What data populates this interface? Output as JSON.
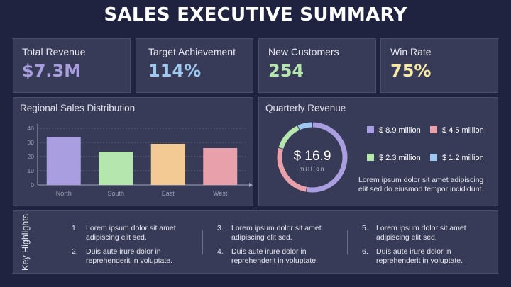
{
  "header": {
    "title": "SALES EXECUTIVE SUMMARY"
  },
  "kpis": [
    {
      "label": "Total Revenue",
      "value": "$7.3M",
      "color": "#a99ee0"
    },
    {
      "label": "Target Achievement",
      "value": "114%",
      "color": "#9ec8f0"
    },
    {
      "label": "New Customers",
      "value": "254",
      "color": "#b5e6ad"
    },
    {
      "label": "Win Rate",
      "value": "75%",
      "color": "#f7e9a3"
    }
  ],
  "regional": {
    "title": "Regional Sales Distribution",
    "chart_data": {
      "type": "bar",
      "categories": [
        "North",
        "South",
        "East",
        "West"
      ],
      "values": [
        34,
        23.5,
        29,
        26
      ],
      "ylim": [
        0,
        40
      ],
      "yticks": [
        "0",
        "10",
        "20",
        "30",
        "40"
      ],
      "colors": [
        "#a99ee0",
        "#b5e6ad",
        "#f3c994",
        "#e8a0ab"
      ],
      "grid": true
    }
  },
  "quarterly": {
    "title": "Quarterly Revenue",
    "total_value": "$ 16.9",
    "total_unit": "million",
    "chart_data": {
      "type": "pie",
      "labels": [
        "$ 8.9 million",
        "$ 4.5 million",
        "$ 2.3 million",
        "$ 1.2 million"
      ],
      "values": [
        8.9,
        4.5,
        2.3,
        1.2
      ],
      "colors": [
        "#a99ee0",
        "#e8a0ab",
        "#b5e6ad",
        "#9ec8f0"
      ]
    },
    "legend": [
      {
        "label": "$ 8.9 million",
        "color": "#a99ee0"
      },
      {
        "label": "$ 4.5 million",
        "color": "#e8a0ab"
      },
      {
        "label": "$ 2.3 million",
        "color": "#b5e6ad"
      },
      {
        "label": "$ 1.2 million",
        "color": "#9ec8f0"
      }
    ],
    "description": "Lorem ipsum dolor sit amet adipiscing elit sed do eiusmod tempor incididunt."
  },
  "highlights": {
    "label": "Key Highlights",
    "items": [
      {
        "num": "1.",
        "text": "Lorem ipsum dolor sit amet adipiscing elit sed."
      },
      {
        "num": "2.",
        "text": "Duis aute irure dolor in reprehenderit in voluptate."
      },
      {
        "num": "3.",
        "text": "Lorem ipsum dolor sit amet adipiscing elit sed."
      },
      {
        "num": "4.",
        "text": "Duis aute irure dolor in reprehenderit in voluptate."
      },
      {
        "num": "5.",
        "text": "Lorem ipsum dolor sit amet adipiscing elit sed."
      },
      {
        "num": "6.",
        "text": "Duis aute irure dolor in reprehenderit in voluptate."
      }
    ]
  }
}
